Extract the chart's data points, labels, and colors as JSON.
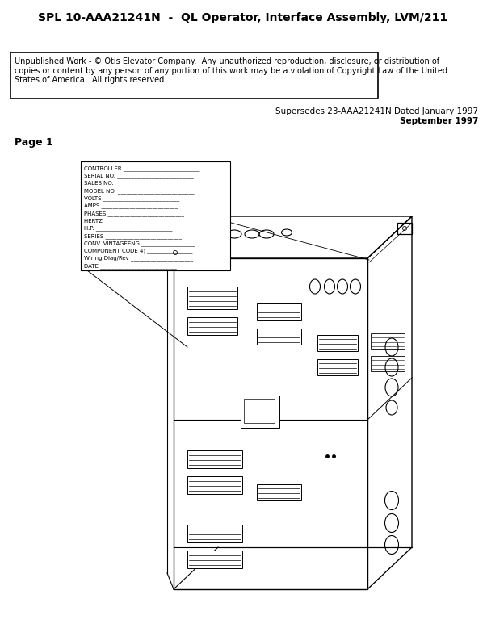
{
  "title": "SPL 10-AAA21241N  -  QL Operator, Interface Assembly, LVM/211",
  "copyright_text": "Unpublished Work - © Otis Elevator Company.  Any unauthorized reproduction, disclosure, or distribution of\ncopies or content by any person of any portion of this work may be a violation of Copyright Law of the United\nStates of America.  All rights reserved.",
  "supersedes_line1": "Supersedes 23-AAA21241N Dated January 1997",
  "supersedes_line2": "September 1997",
  "page_label": "Page 1",
  "label_lines": [
    "CONTROLLER ___________________________",
    "SERIAL NO. ___________________________",
    "SALES NO. ___________________________",
    "MODEL NO. ___________________________",
    "VOLTS ___________________________",
    "AMPS ___________________________",
    "PHASES ___________________________",
    "HERTZ ___________________________",
    "H.P. ___________________________",
    "SERIES ___________________________",
    "CONV. VINTAGEENG ___________________",
    "COMPONENT CODE 4) ________________",
    "Wiring Diag/Rev ______________________",
    "DATE ___________________________"
  ],
  "bg_color": "#ffffff",
  "line_color": "#000000",
  "title_fontsize": 10,
  "copyright_fontsize": 7.0,
  "supersedes_fontsize": 7.5,
  "page_fontsize": 9,
  "label_fontsize": 5.0
}
